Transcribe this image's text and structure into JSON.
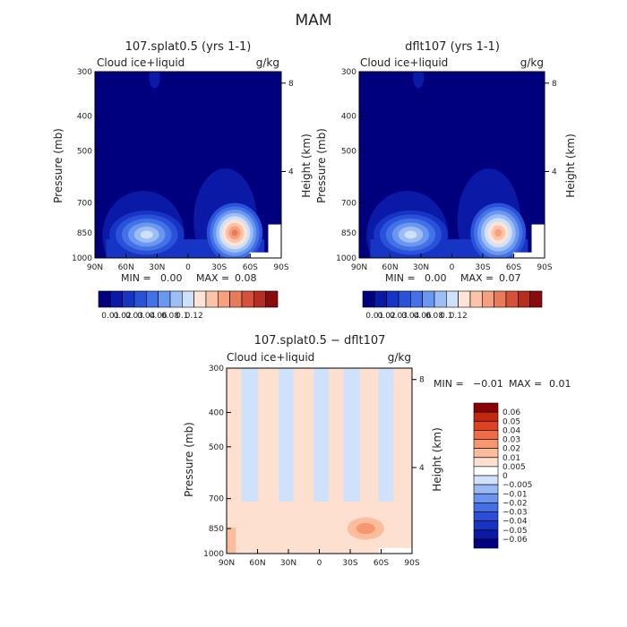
{
  "figure_title": "MAM",
  "colors": {
    "top_scale": [
      "#00007f",
      "#0a1aa6",
      "#1735c4",
      "#2a52d9",
      "#4372e8",
      "#6a98f0",
      "#9dbdf5",
      "#cfe0fa",
      "#ffe4d6",
      "#fcc3a8",
      "#f6a07f",
      "#ea7b5a",
      "#d6513a",
      "#b52e20",
      "#8a0b0b"
    ],
    "diff_scale": [
      "#000080",
      "#0a1aa6",
      "#1633c2",
      "#2a4ed8",
      "#4470e6",
      "#6b94ef",
      "#9bbaf5",
      "#cfe1fb",
      "#ffffff",
      "#fde0cf",
      "#fbbd9c",
      "#f6976f",
      "#ee6c46",
      "#dd4222",
      "#c02810",
      "#8b0000"
    ]
  },
  "chart_data": [
    {
      "type": "heatmap",
      "id": "left",
      "title": "107.splat0.5 (yrs 1-1)",
      "variable": "Cloud ice+liquid",
      "units": "g/kg",
      "xlabel": "",
      "ylabel": "Pressure (mb)",
      "ylabel_right": "Height (km)",
      "x_ticks": [
        "90N",
        "60N",
        "30N",
        "0",
        "30S",
        "60S",
        "90S"
      ],
      "x_values": [
        90,
        60,
        30,
        0,
        -30,
        -60,
        -90
      ],
      "y_ticks": [
        300,
        400,
        500,
        700,
        850,
        1000
      ],
      "y_right_ticks": [
        8,
        4
      ],
      "ylim": [
        300,
        1000
      ],
      "y_scale": "log",
      "min_label": "MIN =",
      "min_value": "0.00",
      "max_label": "MAX =",
      "max_value": "0.08",
      "colorbar_labels": [
        "0.01",
        "0.02",
        "0.03",
        "0.04",
        "0.06",
        "0.08",
        "0.1",
        "0.12"
      ],
      "features": [
        {
          "lat": 40,
          "p": 860,
          "peak": 0.04
        },
        {
          "lat": -45,
          "p": 850,
          "peak": 0.08
        }
      ]
    },
    {
      "type": "heatmap",
      "id": "right",
      "title": "dflt107 (yrs 1-1)",
      "variable": "Cloud ice+liquid",
      "units": "g/kg",
      "xlabel": "",
      "ylabel": "Pressure (mb)",
      "ylabel_right": "Height (km)",
      "x_ticks": [
        "90N",
        "60N",
        "30N",
        "0",
        "30S",
        "60S",
        "90S"
      ],
      "x_values": [
        90,
        60,
        30,
        0,
        -30,
        -60,
        -90
      ],
      "y_ticks": [
        300,
        400,
        500,
        700,
        850,
        1000
      ],
      "y_right_ticks": [
        8,
        4
      ],
      "ylim": [
        300,
        1000
      ],
      "y_scale": "log",
      "min_label": "MIN =",
      "min_value": "0.00",
      "max_label": "MAX =",
      "max_value": "0.07",
      "colorbar_labels": [
        "0.01",
        "0.02",
        "0.03",
        "0.04",
        "0.06",
        "0.08",
        "0.1",
        "0.12"
      ],
      "features": [
        {
          "lat": 40,
          "p": 860,
          "peak": 0.04
        },
        {
          "lat": -45,
          "p": 850,
          "peak": 0.07
        }
      ]
    },
    {
      "type": "heatmap",
      "id": "diff",
      "title": "107.splat0.5 − dflt107",
      "variable": "Cloud ice+liquid",
      "units": "g/kg",
      "xlabel": "",
      "ylabel": "Pressure (mb)",
      "ylabel_right": "Height (km)",
      "x_ticks": [
        "90N",
        "60N",
        "30N",
        "0",
        "30S",
        "60S",
        "90S"
      ],
      "x_values": [
        90,
        60,
        30,
        0,
        -30,
        -60,
        -90
      ],
      "y_ticks": [
        300,
        400,
        500,
        700,
        850,
        1000
      ],
      "y_right_ticks": [
        8,
        4
      ],
      "ylim": [
        300,
        1000
      ],
      "y_scale": "log",
      "min_label": "MIN =",
      "min_value": "−0.01",
      "max_label": "MAX =",
      "max_value": "0.01",
      "colorbar_labels": [
        "0.06",
        "0.05",
        "0.04",
        "0.03",
        "0.02",
        "0.01",
        "0.005",
        "0",
        "−0.005",
        "−0.01",
        "−0.02",
        "−0.03",
        "−0.04",
        "−0.05",
        "−0.06"
      ],
      "features": [
        {
          "lat": -45,
          "p": 850,
          "peak": 0.01
        }
      ]
    }
  ]
}
